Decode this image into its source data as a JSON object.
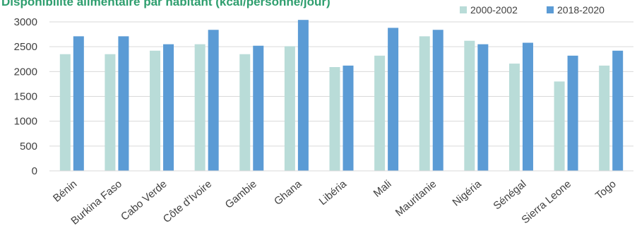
{
  "chart_data": {
    "type": "bar",
    "title": "Disponibilité alimentaire par habitant (kcal/personne/jour)",
    "categories": [
      "Bénin",
      "Burkina Faso",
      "Cabo Verde",
      "Côte d’Ivoire",
      "Gambie",
      "Ghana",
      "Libéria",
      "Mali",
      "Mauritanie",
      "Nigéria",
      "Sénégal",
      "Sierra Leone",
      "Togo"
    ],
    "series": [
      {
        "name": "2000-2002",
        "color": "#b9dcd8",
        "values": [
          2350,
          2350,
          2420,
          2550,
          2350,
          2510,
          2090,
          2320,
          2710,
          2620,
          2160,
          1800,
          2120
        ]
      },
      {
        "name": "2018-2020",
        "color": "#5b9bd5",
        "values": [
          2710,
          2710,
          2550,
          2840,
          2520,
          3040,
          2120,
          2880,
          2840,
          2550,
          2580,
          2320,
          2420
        ]
      }
    ],
    "ylim": [
      0,
      3000
    ],
    "yticks": [
      0,
      500,
      1000,
      1500,
      2000,
      2500,
      3000
    ],
    "grid": true,
    "legend_position": "top-right",
    "xlabel": "",
    "ylabel": ""
  }
}
